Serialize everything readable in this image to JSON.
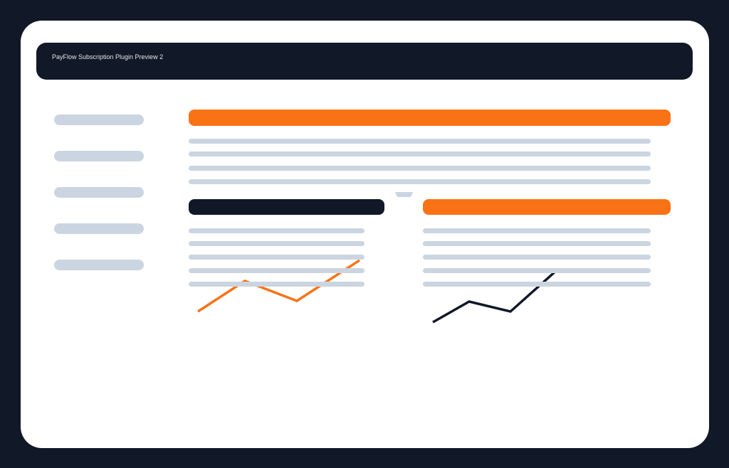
{
  "header": {
    "title": "PayFlow Subscription Plugin Preview 2"
  },
  "colors": {
    "frame": "#111827",
    "accent": "#f97316",
    "placeholder": "#cbd5e1",
    "surface": "#ffffff"
  },
  "sidebar": {
    "item_count": 5
  },
  "sparklines": [
    {
      "color": "#f97316",
      "icon": "trend-line-orange"
    },
    {
      "color": "#111827",
      "icon": "trend-line-dark"
    }
  ]
}
